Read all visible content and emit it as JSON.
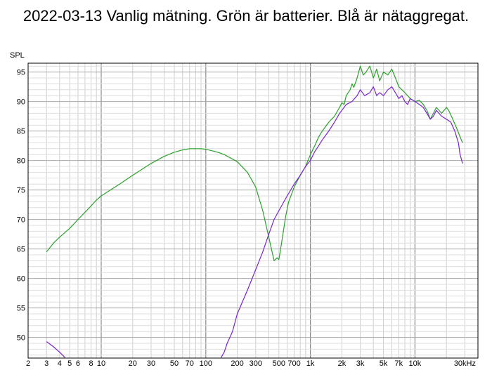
{
  "chart_data": {
    "type": "line",
    "title": "2022-03-13 Vanlig mätning. Grön är batterier. Blå är nätaggregat.",
    "ylabel": "SPL",
    "xunit": "kHz",
    "xscale": "log",
    "xlim": [
      2,
      40000
    ],
    "ylim": [
      46.5,
      96.5
    ],
    "grid": true,
    "x_ticks": [
      {
        "value": 2,
        "label": "2"
      },
      {
        "value": 3,
        "label": "3"
      },
      {
        "value": 4,
        "label": "4"
      },
      {
        "value": 5,
        "label": "5"
      },
      {
        "value": 6,
        "label": "6"
      },
      {
        "value": 8,
        "label": "8"
      },
      {
        "value": 10,
        "label": "10"
      },
      {
        "value": 20,
        "label": "20"
      },
      {
        "value": 30,
        "label": "30"
      },
      {
        "value": 50,
        "label": "50"
      },
      {
        "value": 70,
        "label": "70"
      },
      {
        "value": 100,
        "label": "100"
      },
      {
        "value": 200,
        "label": "200"
      },
      {
        "value": 300,
        "label": "300"
      },
      {
        "value": 500,
        "label": "500"
      },
      {
        "value": 700,
        "label": "700"
      },
      {
        "value": 1000,
        "label": "1k"
      },
      {
        "value": 2000,
        "label": "2k"
      },
      {
        "value": 3000,
        "label": "3k"
      },
      {
        "value": 5000,
        "label": "5k"
      },
      {
        "value": 7000,
        "label": "7k"
      },
      {
        "value": 10000,
        "label": "10k"
      },
      {
        "value": 30000,
        "label": "30kHz"
      }
    ],
    "y_ticks": [
      50,
      55,
      60,
      65,
      70,
      75,
      80,
      85,
      90,
      95
    ],
    "series": [
      {
        "color": "#2ca02c",
        "points": [
          [
            3,
            64.5
          ],
          [
            3.5,
            66.0
          ],
          [
            4,
            67.0
          ],
          [
            5,
            68.5
          ],
          [
            6,
            70.0
          ],
          [
            8,
            72.3
          ],
          [
            9,
            73.3
          ],
          [
            10,
            74.0
          ],
          [
            15,
            76.0
          ],
          [
            20,
            77.5
          ],
          [
            30,
            79.5
          ],
          [
            40,
            80.7
          ],
          [
            50,
            81.4
          ],
          [
            60,
            81.8
          ],
          [
            70,
            82.0
          ],
          [
            80,
            82.0
          ],
          [
            90,
            82.0
          ],
          [
            100,
            81.9
          ],
          [
            130,
            81.4
          ],
          [
            150,
            81.0
          ],
          [
            200,
            79.8
          ],
          [
            250,
            78.0
          ],
          [
            300,
            75.5
          ],
          [
            350,
            71.5
          ],
          [
            400,
            67.0
          ],
          [
            430,
            64.5
          ],
          [
            450,
            63.0
          ],
          [
            480,
            63.5
          ],
          [
            500,
            63.2
          ],
          [
            530,
            66.0
          ],
          [
            580,
            70.5
          ],
          [
            620,
            73.0
          ],
          [
            700,
            75.5
          ],
          [
            800,
            77.5
          ],
          [
            900,
            79.0
          ],
          [
            1000,
            81.0
          ],
          [
            1100,
            82.5
          ],
          [
            1200,
            84.0
          ],
          [
            1300,
            85.0
          ],
          [
            1500,
            86.5
          ],
          [
            1700,
            87.5
          ],
          [
            1900,
            89.0
          ],
          [
            2000,
            89.8
          ],
          [
            2100,
            89.5
          ],
          [
            2200,
            91.0
          ],
          [
            2400,
            92.0
          ],
          [
            2500,
            93.0
          ],
          [
            2600,
            92.4
          ],
          [
            2800,
            94.0
          ],
          [
            3000,
            96.0
          ],
          [
            3200,
            94.5
          ],
          [
            3400,
            95.0
          ],
          [
            3700,
            96.0
          ],
          [
            4000,
            94.0
          ],
          [
            4300,
            95.5
          ],
          [
            4600,
            93.5
          ],
          [
            5000,
            95.0
          ],
          [
            5500,
            94.5
          ],
          [
            6000,
            95.5
          ],
          [
            6500,
            94.0
          ],
          [
            7000,
            92.5
          ],
          [
            7500,
            92.0
          ],
          [
            8000,
            91.5
          ],
          [
            8500,
            91.0
          ],
          [
            9000,
            90.5
          ],
          [
            10000,
            90.0
          ],
          [
            11000,
            90.2
          ],
          [
            12000,
            89.5
          ],
          [
            13000,
            88.5
          ],
          [
            14000,
            87.0
          ],
          [
            15000,
            88.0
          ],
          [
            16000,
            89.0
          ],
          [
            18000,
            88.0
          ],
          [
            20000,
            89.0
          ],
          [
            21000,
            88.5
          ],
          [
            23000,
            87.0
          ],
          [
            25000,
            85.5
          ],
          [
            27000,
            84.0
          ],
          [
            28500,
            83.0
          ]
        ]
      },
      {
        "color": "#7b22d4",
        "points": [
          [
            3,
            49.3
          ],
          [
            3.5,
            48.4
          ],
          [
            4,
            47.5
          ],
          [
            4.5,
            46.6
          ],
          [
            140,
            46.6
          ],
          [
            150,
            47.5
          ],
          [
            160,
            49.0
          ],
          [
            180,
            51.0
          ],
          [
            200,
            54.0
          ],
          [
            250,
            58.0
          ],
          [
            300,
            61.5
          ],
          [
            350,
            64.5
          ],
          [
            400,
            67.5
          ],
          [
            450,
            70.0
          ],
          [
            500,
            71.5
          ],
          [
            600,
            74.0
          ],
          [
            700,
            76.0
          ],
          [
            800,
            77.5
          ],
          [
            900,
            79.0
          ],
          [
            1000,
            80.0
          ],
          [
            1100,
            81.5
          ],
          [
            1200,
            82.5
          ],
          [
            1300,
            83.5
          ],
          [
            1500,
            85.0
          ],
          [
            1700,
            86.5
          ],
          [
            1900,
            88.0
          ],
          [
            2000,
            88.5
          ],
          [
            2200,
            89.5
          ],
          [
            2500,
            90.0
          ],
          [
            2800,
            91.0
          ],
          [
            3000,
            92.0
          ],
          [
            3300,
            91.0
          ],
          [
            3700,
            91.5
          ],
          [
            4000,
            92.5
          ],
          [
            4300,
            91.0
          ],
          [
            4600,
            91.5
          ],
          [
            5000,
            91.0
          ],
          [
            5500,
            92.0
          ],
          [
            6000,
            92.5
          ],
          [
            6500,
            91.5
          ],
          [
            7000,
            90.5
          ],
          [
            7500,
            91.0
          ],
          [
            8000,
            90.0
          ],
          [
            8500,
            89.5
          ],
          [
            9000,
            90.5
          ],
          [
            10000,
            90.0
          ],
          [
            11000,
            89.5
          ],
          [
            12000,
            89.0
          ],
          [
            13000,
            88.0
          ],
          [
            14000,
            87.0
          ],
          [
            15000,
            87.5
          ],
          [
            16000,
            88.5
          ],
          [
            18000,
            87.5
          ],
          [
            20000,
            87.0
          ],
          [
            22000,
            86.5
          ],
          [
            24000,
            85.0
          ],
          [
            26000,
            83.0
          ],
          [
            27000,
            81.0
          ],
          [
            28500,
            79.5
          ]
        ]
      }
    ]
  }
}
